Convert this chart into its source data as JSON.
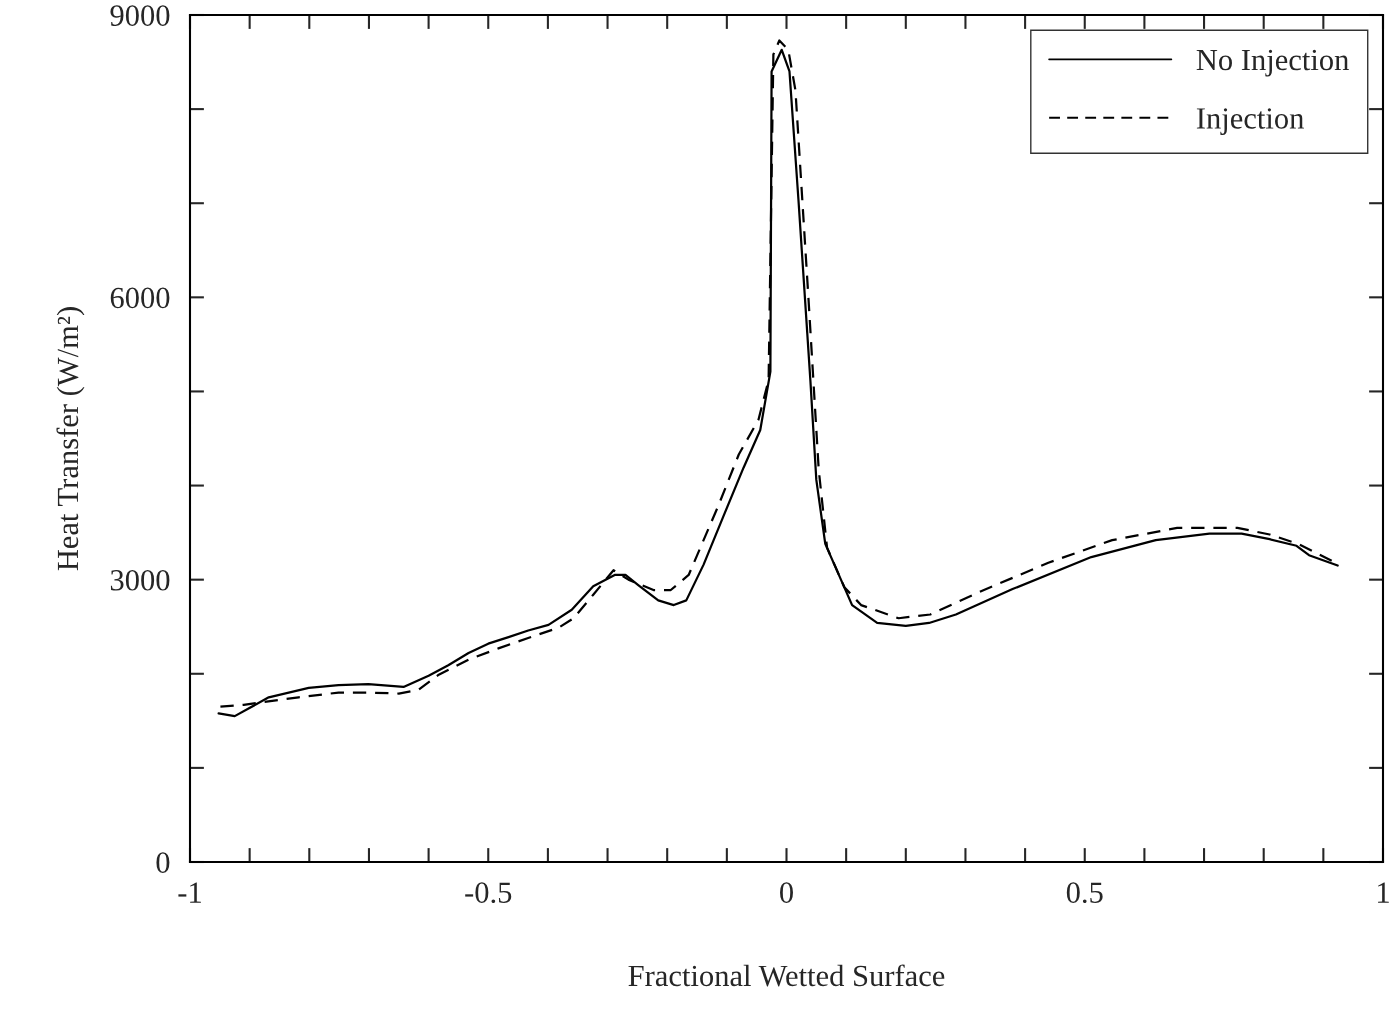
{
  "chart_data": {
    "type": "line",
    "xlabel": "Fractional Wetted Surface",
    "ylabel": "Heat Transfer (W/m²)",
    "xlim": [
      -1,
      1
    ],
    "ylim": [
      0,
      9000
    ],
    "xticks": [
      -1,
      {
        "value": -0.9,
        "label": null
      },
      {
        "value": -0.8,
        "label": null
      },
      {
        "value": -0.7,
        "label": null
      },
      {
        "value": -0.6,
        "label": null
      },
      -0.5,
      {
        "value": -0.4,
        "label": null
      },
      {
        "value": -0.3,
        "label": null
      },
      {
        "value": -0.2,
        "label": null
      },
      {
        "value": -0.1,
        "label": null
      },
      0,
      {
        "value": 0.1,
        "label": null
      },
      {
        "value": 0.2,
        "label": null
      },
      {
        "value": 0.3,
        "label": null
      },
      {
        "value": 0.4,
        "label": null
      },
      0.5,
      {
        "value": 0.6,
        "label": null
      },
      {
        "value": 0.7,
        "label": null
      },
      {
        "value": 0.8,
        "label": null
      },
      {
        "value": 0.9,
        "label": null
      },
      1
    ],
    "yticks": [
      0,
      {
        "value": 1000,
        "label": null
      },
      {
        "value": 2000,
        "label": null
      },
      3000,
      {
        "value": 4000,
        "label": null
      },
      {
        "value": 5000,
        "label": null
      },
      6000,
      {
        "value": 7000,
        "label": null
      },
      {
        "value": 8000,
        "label": null
      },
      9000
    ],
    "grid": false,
    "legend": "top right",
    "series": [
      {
        "name": "No Injection",
        "color": "#000000",
        "line_style": "solid",
        "x": [
          -0.952,
          -0.925,
          -0.868,
          -0.801,
          -0.751,
          -0.701,
          -0.642,
          -0.6,
          -0.567,
          -0.533,
          -0.5,
          -0.466,
          -0.433,
          -0.399,
          -0.36,
          -0.324,
          -0.288,
          -0.27,
          -0.248,
          -0.215,
          -0.189,
          -0.168,
          -0.139,
          -0.106,
          -0.072,
          -0.044,
          -0.027,
          -0.025,
          -0.008,
          0.005,
          0.02,
          0.04,
          0.05,
          0.065,
          0.11,
          0.152,
          0.2,
          0.239,
          0.284,
          0.379,
          0.511,
          0.619,
          0.709,
          0.763,
          0.81,
          0.855,
          0.876,
          0.924
        ],
        "values": [
          1580,
          1550,
          1750,
          1850,
          1880,
          1890,
          1860,
          1980,
          2090,
          2220,
          2320,
          2390,
          2460,
          2520,
          2680,
          2930,
          3050,
          3050,
          2940,
          2780,
          2730,
          2780,
          3160,
          3670,
          4190,
          4590,
          5210,
          8400,
          8630,
          8400,
          7040,
          5120,
          4060,
          3380,
          2730,
          2540,
          2510,
          2540,
          2630,
          2900,
          3240,
          3420,
          3490,
          3490,
          3430,
          3360,
          3260,
          3150
        ]
      },
      {
        "name": "Injection",
        "color": "#000000",
        "line_style": "dashed",
        "x": [
          -0.949,
          -0.91,
          -0.818,
          -0.751,
          -0.701,
          -0.65,
          -0.617,
          -0.583,
          -0.533,
          -0.483,
          -0.433,
          -0.382,
          -0.357,
          -0.324,
          -0.29,
          -0.265,
          -0.223,
          -0.194,
          -0.164,
          -0.114,
          -0.08,
          -0.047,
          -0.03,
          -0.022,
          -0.012,
          0.003,
          0.015,
          0.037,
          0.054,
          0.068,
          0.097,
          0.125,
          0.188,
          0.241,
          0.331,
          0.439,
          0.546,
          0.655,
          0.756,
          0.81,
          0.858,
          0.924
        ],
        "values": [
          1650,
          1670,
          1750,
          1800,
          1800,
          1790,
          1830,
          1990,
          2150,
          2270,
          2380,
          2490,
          2590,
          2840,
          3100,
          3000,
          2890,
          2890,
          3050,
          3790,
          4330,
          4700,
          5120,
          8580,
          8730,
          8630,
          8200,
          5970,
          4170,
          3340,
          2920,
          2730,
          2590,
          2630,
          2890,
          3180,
          3420,
          3550,
          3550,
          3480,
          3380,
          3170
        ]
      }
    ]
  }
}
